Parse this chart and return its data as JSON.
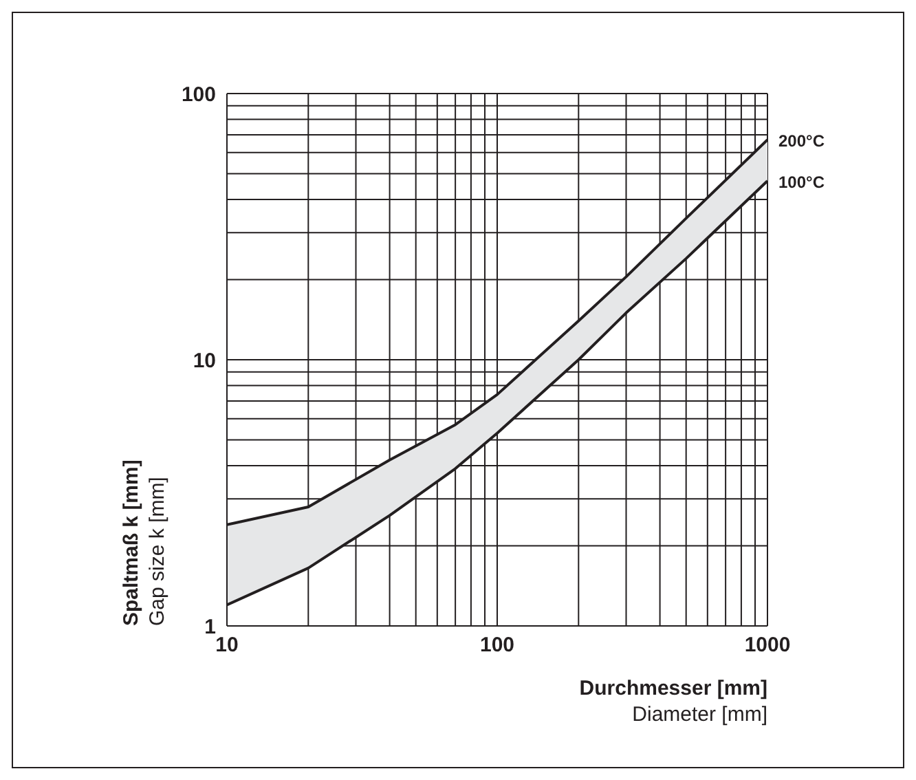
{
  "chart_data": {
    "type": "line",
    "xlabel": "Durchmesser [mm]\nDiameter [mm]",
    "ylabel": "Spaltmaß k [mm]\nGap size k [mm]",
    "x": [
      10,
      20,
      40,
      70,
      100,
      200,
      300,
      500,
      1000
    ],
    "series": [
      {
        "name": "200°C",
        "color": "#231f20",
        "values": [
          2.4,
          2.8,
          4.2,
          5.7,
          7.4,
          14,
          20.5,
          34,
          67
        ],
        "lower": [
          1.2,
          1.65,
          2.6,
          3.9,
          5.3,
          10,
          15,
          24,
          47
        ],
        "upper": [
          2.4,
          2.8,
          4.2,
          5.7,
          7.4,
          14,
          20.5,
          34,
          67
        ]
      },
      {
        "name": "100°C",
        "color": "#231f20",
        "values": [
          1.2,
          1.65,
          2.6,
          3.9,
          5.3,
          10,
          15,
          24,
          47
        ]
      }
    ],
    "log": "xy",
    "grid": true,
    "marker": "none",
    "line_style": "solid",
    "xlim": [
      10,
      1000
    ],
    "xticks": [
      10,
      {
        "value": 20,
        "label": null
      },
      {
        "value": 30,
        "label": null
      },
      {
        "value": 40,
        "label": null
      },
      {
        "value": 50,
        "label": null
      },
      {
        "value": 60,
        "label": null
      },
      {
        "value": 70,
        "label": null
      },
      {
        "value": 80,
        "label": null
      },
      {
        "value": 90,
        "label": null
      },
      100,
      {
        "value": 200,
        "label": null
      },
      {
        "value": 300,
        "label": null
      },
      {
        "value": 400,
        "label": null
      },
      {
        "value": 500,
        "label": null
      },
      {
        "value": 600,
        "label": null
      },
      {
        "value": 700,
        "label": null
      },
      {
        "value": 800,
        "label": null
      },
      {
        "value": 900,
        "label": null
      },
      1000
    ],
    "ylim": [
      1,
      100
    ],
    "yticks": [
      1,
      {
        "value": 2,
        "label": null
      },
      {
        "value": 3,
        "label": null
      },
      {
        "value": 4,
        "label": null
      },
      {
        "value": 5,
        "label": null
      },
      {
        "value": 6,
        "label": null
      },
      {
        "value": 7,
        "label": null
      },
      {
        "value": 8,
        "label": null
      },
      {
        "value": 9,
        "label": null
      },
      10,
      {
        "value": 20,
        "label": null
      },
      {
        "value": 30,
        "label": null
      },
      {
        "value": 40,
        "label": null
      },
      {
        "value": 50,
        "label": null
      },
      {
        "value": 60,
        "label": null
      },
      {
        "value": 70,
        "label": null
      },
      {
        "value": 80,
        "label": null
      },
      {
        "value": 90,
        "label": null
      },
      100
    ]
  }
}
